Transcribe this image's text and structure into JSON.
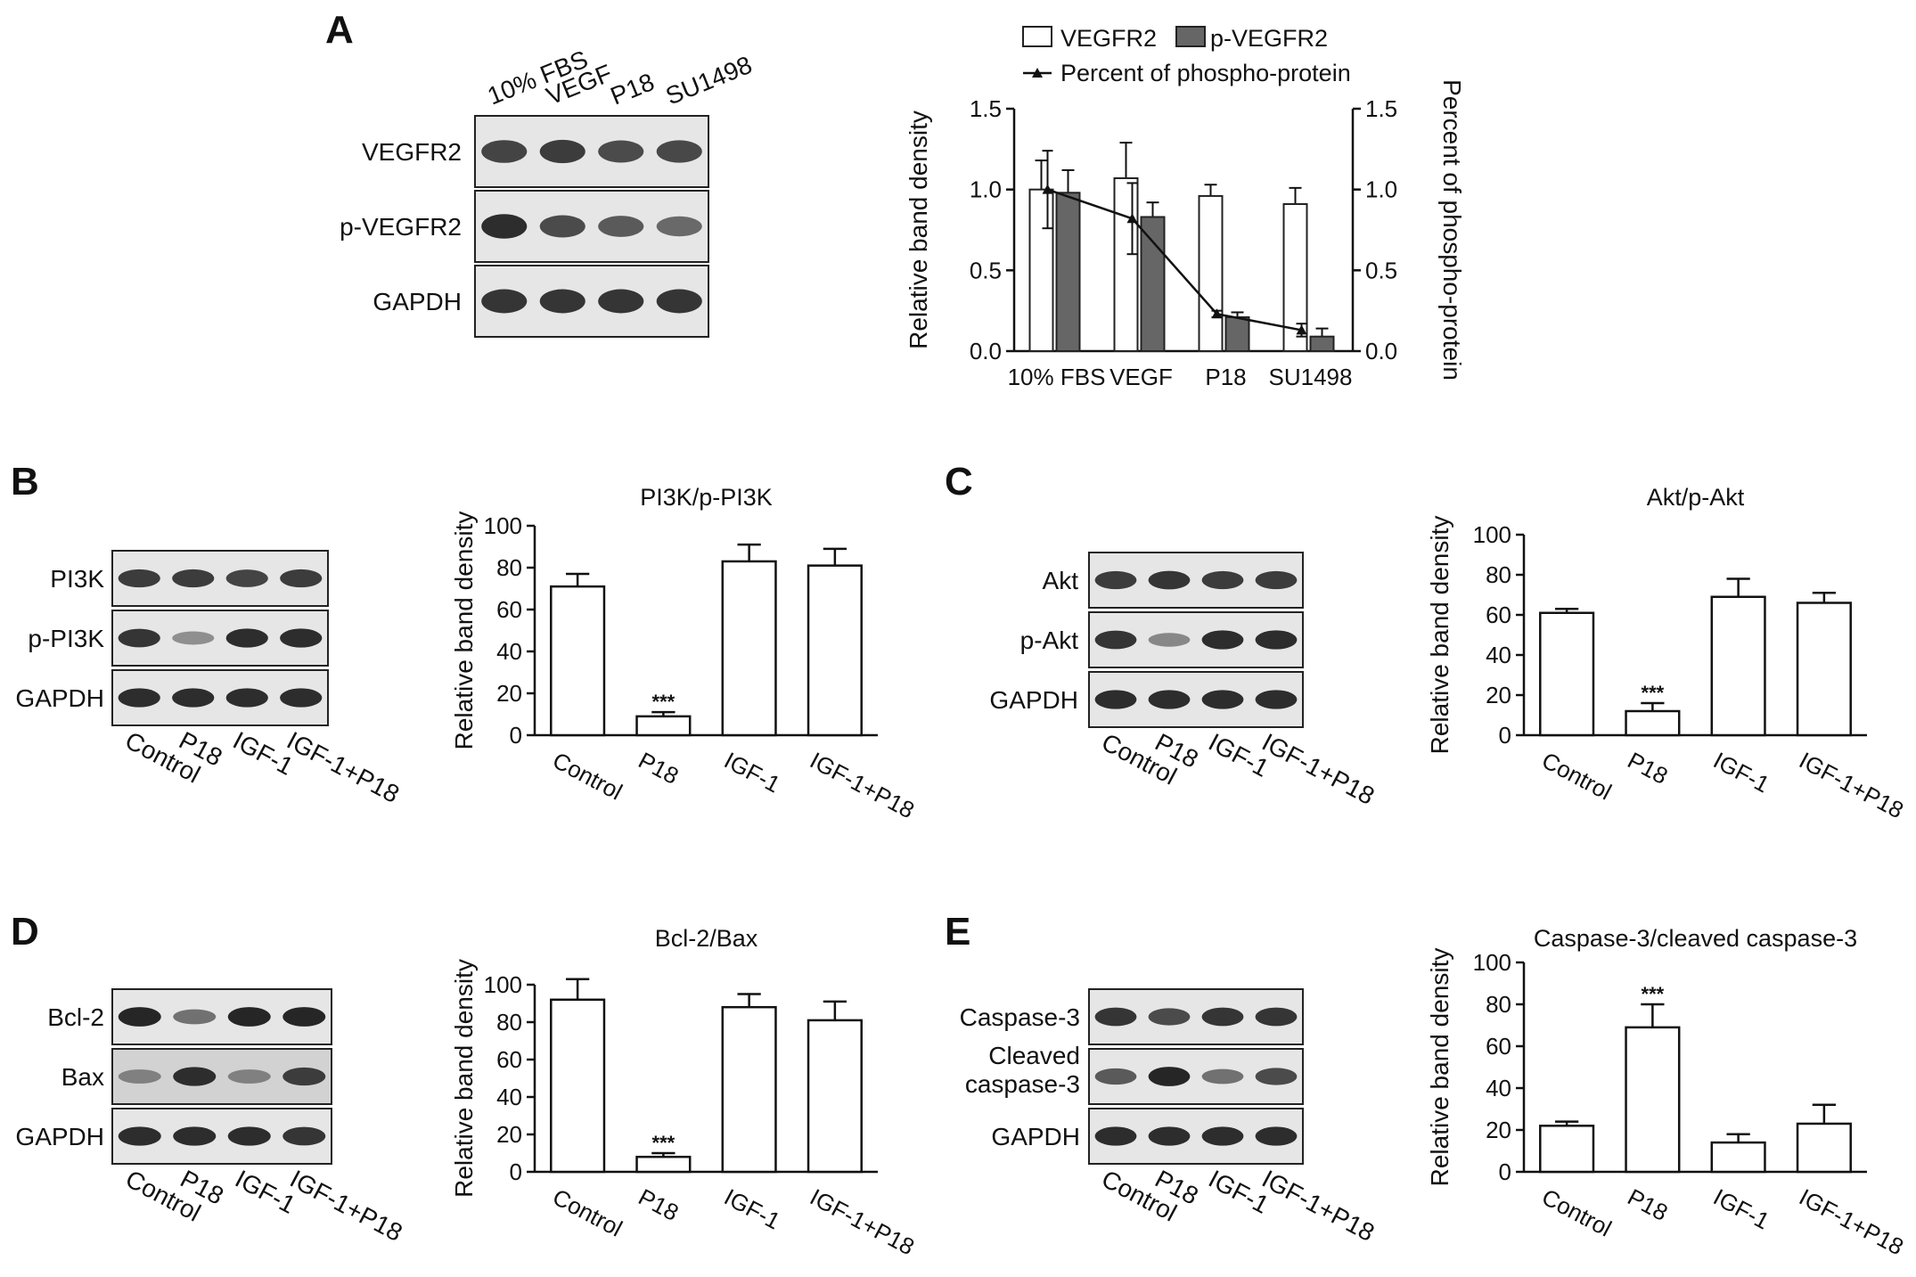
{
  "panels": {
    "A": "A",
    "B": "B",
    "C": "C",
    "D": "D",
    "E": "E"
  },
  "blots": {
    "A": {
      "lanes": [
        "10% FBS",
        "VEGF",
        "P18",
        "SU1498"
      ],
      "rows": [
        "VEGFR2",
        "p-VEGFR2",
        "GAPDH"
      ],
      "intensity": [
        [
          0.75,
          0.8,
          0.7,
          0.72
        ],
        [
          0.9,
          0.7,
          0.6,
          0.5
        ],
        [
          0.85,
          0.85,
          0.85,
          0.85
        ]
      ]
    },
    "B": {
      "lanes": [
        "Control",
        "P18",
        "IGF-1",
        "IGF-1+P18"
      ],
      "rows": [
        "PI3K",
        "p-PI3K",
        "GAPDH"
      ],
      "intensity": [
        [
          0.8,
          0.8,
          0.75,
          0.8
        ],
        [
          0.85,
          0.25,
          0.9,
          0.9
        ],
        [
          0.9,
          0.9,
          0.9,
          0.9
        ]
      ]
    },
    "C": {
      "lanes": [
        "Control",
        "P18",
        "IGF-1",
        "IGF-1+P18"
      ],
      "rows": [
        "Akt",
        "p-Akt",
        "GAPDH"
      ],
      "intensity": [
        [
          0.8,
          0.85,
          0.8,
          0.8
        ],
        [
          0.85,
          0.3,
          0.9,
          0.9
        ],
        [
          0.9,
          0.9,
          0.9,
          0.9
        ]
      ]
    },
    "D": {
      "lanes": [
        "Control",
        "P18",
        "IGF-1",
        "IGF-1+P18"
      ],
      "rows": [
        "Bcl-2",
        "Bax",
        "GAPDH"
      ],
      "intensity": [
        [
          0.95,
          0.45,
          0.95,
          0.95
        ],
        [
          0.35,
          0.9,
          0.35,
          0.8
        ],
        [
          0.9,
          0.9,
          0.9,
          0.85
        ]
      ]
    },
    "E": {
      "lanes": [
        "Control",
        "P18",
        "IGF-1",
        "IGF-1+P18"
      ],
      "rows": [
        "Caspase-3",
        "Cleaved caspase-3",
        "GAPDH"
      ],
      "intensity": [
        [
          0.85,
          0.7,
          0.85,
          0.85
        ],
        [
          0.6,
          0.95,
          0.45,
          0.7
        ],
        [
          0.9,
          0.9,
          0.9,
          0.9
        ]
      ]
    }
  },
  "chart_data": [
    {
      "id": "A",
      "type": "bar",
      "title": "",
      "categories": [
        "10% FBS",
        "VEGF",
        "P18",
        "SU1498"
      ],
      "series": [
        {
          "name": "VEGFR2",
          "values": [
            1.0,
            1.07,
            0.96,
            0.91
          ],
          "errors": [
            0.18,
            0.22,
            0.07,
            0.1
          ],
          "fill": "#ffffff"
        },
        {
          "name": "p-VEGFR2",
          "values": [
            0.98,
            0.83,
            0.21,
            0.09
          ],
          "errors": [
            0.14,
            0.09,
            0.03,
            0.05
          ],
          "fill": "#666666"
        }
      ],
      "line": {
        "name": "Percent of phospho-protein",
        "values": [
          1.0,
          0.82,
          0.23,
          0.13
        ],
        "errors": [
          0.24,
          0.22,
          0.02,
          0.04
        ]
      },
      "ylabel": "Relative band density",
      "y2label": "Percent of phospho-protein",
      "ylim": [
        0,
        1.5
      ],
      "yticks": [
        "0.0",
        "0.5",
        "1.0",
        "1.5"
      ],
      "legend": "top"
    },
    {
      "id": "B",
      "type": "bar",
      "title": "PI3K/p-PI3K",
      "categories": [
        "Control",
        "P18",
        "IGF-1",
        "IGF-1+P18"
      ],
      "values": [
        71,
        9,
        83,
        81
      ],
      "errors": [
        6,
        2,
        8,
        8
      ],
      "ylabel": "Relative band density",
      "ylim": [
        0,
        100
      ],
      "yticks": [
        "0",
        "20",
        "40",
        "60",
        "80",
        "100"
      ],
      "sig": [
        "",
        "***",
        "",
        ""
      ]
    },
    {
      "id": "C",
      "type": "bar",
      "title": "Akt/p-Akt",
      "categories": [
        "Control",
        "P18",
        "IGF-1",
        "IGF-1+P18"
      ],
      "values": [
        61,
        12,
        69,
        66
      ],
      "errors": [
        2,
        4,
        9,
        5
      ],
      "ylabel": "Relative band density",
      "ylim": [
        0,
        100
      ],
      "yticks": [
        "0",
        "20",
        "40",
        "60",
        "80",
        "100"
      ],
      "sig": [
        "",
        "***",
        "",
        ""
      ]
    },
    {
      "id": "D",
      "type": "bar",
      "title": "Bcl-2/Bax",
      "categories": [
        "Control",
        "P18",
        "IGF-1",
        "IGF-1+P18"
      ],
      "values": [
        92,
        8,
        88,
        81
      ],
      "errors": [
        11,
        2,
        7,
        10
      ],
      "ylabel": "Relative band density",
      "ylim": [
        0,
        100
      ],
      "yticks": [
        "0",
        "20",
        "40",
        "60",
        "80",
        "100"
      ],
      "sig": [
        "",
        "***",
        "",
        ""
      ]
    },
    {
      "id": "E",
      "type": "bar",
      "title": "Caspase-3/cleaved caspase-3",
      "categories": [
        "Control",
        "P18",
        "IGF-1",
        "IGF-1+P18"
      ],
      "values": [
        22,
        69,
        14,
        23
      ],
      "errors": [
        2,
        11,
        4,
        9
      ],
      "ylabel": "Relative band density",
      "ylim": [
        0,
        100
      ],
      "yticks": [
        "0",
        "20",
        "40",
        "60",
        "80",
        "100"
      ],
      "sig": [
        "",
        "***",
        "",
        ""
      ]
    }
  ]
}
